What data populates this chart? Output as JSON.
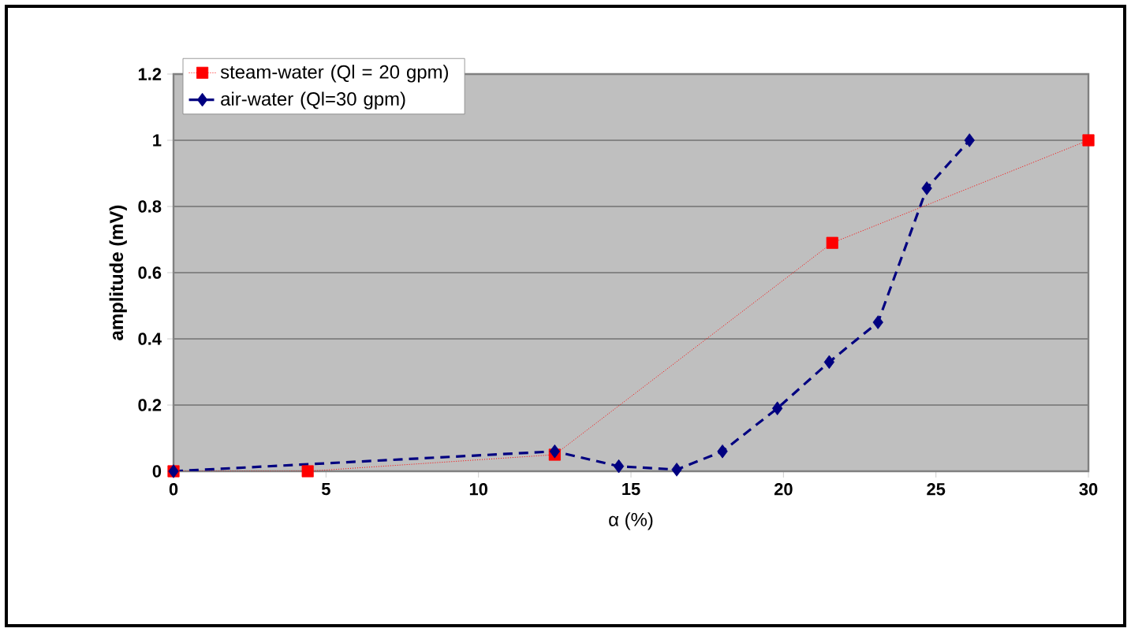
{
  "chart_data": {
    "type": "line",
    "xlabel": "α (%)",
    "ylabel": "amplitude (mV)",
    "xlim": [
      0,
      30
    ],
    "xticks": [
      0,
      5,
      10,
      15,
      20,
      25,
      30
    ],
    "ylim": [
      0,
      1.2
    ],
    "yticks": [
      0,
      0.2,
      0.4,
      0.6,
      0.8,
      1,
      1.2
    ],
    "grid": "y",
    "legend": "top left",
    "series": [
      {
        "name": "steam-water (Ql = 20 gpm)",
        "color": "#ff0000",
        "marker": "square",
        "line_style": "dotted",
        "x": [
          0,
          4.4,
          12.5,
          21.6,
          30
        ],
        "values": [
          0,
          0,
          0.05,
          0.69,
          1.0
        ]
      },
      {
        "name": "air-water (Ql=30 gpm)",
        "color": "#000080",
        "marker": "diamond",
        "line_style": "dashed",
        "x": [
          0,
          12.5,
          14.6,
          16.5,
          18,
          19.8,
          21.5,
          23.1,
          24.7,
          26.1
        ],
        "values": [
          0,
          0.06,
          0.015,
          0.005,
          0.06,
          0.19,
          0.33,
          0.45,
          0.855,
          1.0
        ]
      }
    ]
  }
}
